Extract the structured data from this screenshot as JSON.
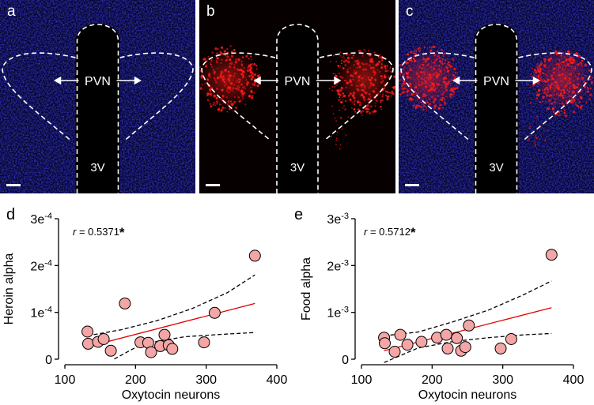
{
  "micrographs": [
    {
      "letter": "a",
      "region_label": "PVN",
      "ventricle_label": "3V",
      "stain": "blue"
    },
    {
      "letter": "b",
      "region_label": "PVN",
      "ventricle_label": "3V",
      "stain": "red"
    },
    {
      "letter": "c",
      "region_label": "PVN",
      "ventricle_label": "3V",
      "stain": "merge"
    }
  ],
  "colors": {
    "nuclei": "#2020c8",
    "neurons": "#ff1a1a",
    "marker_fill": "#f4a5a5",
    "fit_line": "#e00000",
    "ci_line": "#000000"
  },
  "chart_data": [
    {
      "type": "scatter",
      "panel_letter": "d",
      "ylabel": "Heroin alpha",
      "xlabel": "Oxytocin neurons",
      "r_prefix": "r",
      "r_value": " = 0.5371",
      "significance": "*",
      "xlim": [
        100,
        400
      ],
      "ylim": [
        0,
        0.0003
      ],
      "xticks": [
        100,
        200,
        300,
        400
      ],
      "yticks": [
        {
          "value": 0,
          "base": "0",
          "exp": ""
        },
        {
          "value": 0.0001,
          "base": "1e",
          "exp": "-4"
        },
        {
          "value": 0.0002,
          "base": "2e",
          "exp": "-4"
        },
        {
          "value": 0.0003,
          "base": "3e",
          "exp": "-4"
        }
      ],
      "points": [
        {
          "x": 132,
          "y": 5.9e-05
        },
        {
          "x": 133,
          "y": 3.3e-05
        },
        {
          "x": 147,
          "y": 3.7e-05
        },
        {
          "x": 155,
          "y": 4.3e-05
        },
        {
          "x": 165,
          "y": 1.8e-05
        },
        {
          "x": 185,
          "y": 0.000119
        },
        {
          "x": 207,
          "y": 3.6e-05
        },
        {
          "x": 218,
          "y": 3.5e-05
        },
        {
          "x": 222,
          "y": 1.5e-05
        },
        {
          "x": 235,
          "y": 2.8e-05
        },
        {
          "x": 241,
          "y": 5.2e-05
        },
        {
          "x": 247,
          "y": 3e-05
        },
        {
          "x": 252,
          "y": 2.2e-05
        },
        {
          "x": 297,
          "y": 3.6e-05
        },
        {
          "x": 312,
          "y": 9.9e-05
        },
        {
          "x": 369,
          "y": 0.000221
        }
      ],
      "fit": [
        [
          132,
          2.65e-05
        ],
        [
          369,
          0.000119
        ]
      ],
      "ci_upper": [
        [
          132,
          5e-05
        ],
        [
          180,
          6.3e-05
        ],
        [
          230,
          8.2e-05
        ],
        [
          280,
          0.000108
        ],
        [
          330,
          0.000142
        ],
        [
          369,
          0.00018
        ]
      ],
      "ci_lower": [
        [
          170,
          5e-07
        ],
        [
          200,
          2.5e-05
        ],
        [
          230,
          3.8e-05
        ],
        [
          270,
          4.8e-05
        ],
        [
          320,
          5.3e-05
        ],
        [
          369,
          5.7e-05
        ]
      ]
    },
    {
      "type": "scatter",
      "panel_letter": "e",
      "ylabel": "Food alpha",
      "xlabel": "Oxytocin neurons",
      "r_prefix": "r",
      "r_value": " = 0.5712",
      "significance": "*",
      "xlim": [
        100,
        400
      ],
      "ylim": [
        0,
        0.003
      ],
      "xticks": [
        100,
        200,
        300,
        400
      ],
      "yticks": [
        {
          "value": 0,
          "base": "0",
          "exp": ""
        },
        {
          "value": 0.001,
          "base": "1e",
          "exp": "-3"
        },
        {
          "value": 0.002,
          "base": "2e",
          "exp": "-3"
        },
        {
          "value": 0.003,
          "base": "3e",
          "exp": "-3"
        }
      ],
      "points": [
        {
          "x": 132,
          "y": 0.00046
        },
        {
          "x": 133,
          "y": 0.00034
        },
        {
          "x": 147,
          "y": 0.00016
        },
        {
          "x": 155,
          "y": 0.00052
        },
        {
          "x": 165,
          "y": 0.00031
        },
        {
          "x": 185,
          "y": 0.00037
        },
        {
          "x": 207,
          "y": 0.00046
        },
        {
          "x": 220,
          "y": 0.00052
        },
        {
          "x": 222,
          "y": 0.00023
        },
        {
          "x": 235,
          "y": 0.00045
        },
        {
          "x": 241,
          "y": 0.00018
        },
        {
          "x": 247,
          "y": 0.00026
        },
        {
          "x": 252,
          "y": 0.00072
        },
        {
          "x": 297,
          "y": 0.00023
        },
        {
          "x": 312,
          "y": 0.00043
        },
        {
          "x": 369,
          "y": 0.00223
        }
      ],
      "fit": [
        [
          132,
          0.00018
        ],
        [
          369,
          0.0011
        ]
      ],
      "ci_upper": [
        [
          132,
          0.0005
        ],
        [
          180,
          0.00058
        ],
        [
          230,
          0.0008
        ],
        [
          280,
          0.00105
        ],
        [
          330,
          0.00138
        ],
        [
          369,
          0.00167
        ]
      ],
      "ci_lower": [
        [
          132,
          -7e-05
        ],
        [
          180,
          0.00024
        ],
        [
          230,
          0.00038
        ],
        [
          280,
          0.00046
        ],
        [
          330,
          0.00052
        ],
        [
          369,
          0.00055
        ]
      ]
    }
  ]
}
